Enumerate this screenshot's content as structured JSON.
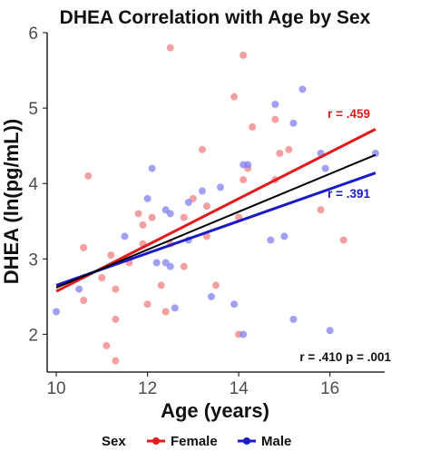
{
  "chart_data": {
    "type": "scatter",
    "title": "DHEA Correlation with Age by Sex",
    "xlabel": "Age (years)",
    "ylabel": "DHEA (ln(pg/mL))",
    "xlim": [
      9.8,
      17.2
    ],
    "ylim": [
      1.5,
      6.0
    ],
    "x_ticks": [
      10,
      12,
      14,
      16
    ],
    "y_ticks": [
      2,
      3,
      4,
      5,
      6
    ],
    "grid": false,
    "legend": {
      "title": "Sex",
      "placement": "bottom",
      "entries": [
        {
          "label": "Female",
          "color": "#e41a1c"
        },
        {
          "label": "Male",
          "color": "#1a1ac8"
        }
      ]
    },
    "series": [
      {
        "name": "Female",
        "color": "#f08080",
        "points": [
          [
            11.3,
            1.65
          ],
          [
            11.1,
            1.85
          ],
          [
            11.3,
            2.2
          ],
          [
            12.0,
            2.4
          ],
          [
            12.4,
            2.3
          ],
          [
            10.6,
            2.45
          ],
          [
            11.3,
            2.6
          ],
          [
            12.3,
            2.65
          ],
          [
            13.5,
            2.65
          ],
          [
            12.8,
            2.9
          ],
          [
            11.2,
            3.05
          ],
          [
            11.6,
            2.95
          ],
          [
            10.6,
            3.15
          ],
          [
            11.9,
            3.2
          ],
          [
            12.5,
            3.2
          ],
          [
            13.3,
            3.3
          ],
          [
            11.8,
            3.6
          ],
          [
            11.9,
            3.45
          ],
          [
            12.1,
            3.55
          ],
          [
            12.8,
            3.55
          ],
          [
            13.3,
            3.7
          ],
          [
            13.0,
            3.8
          ],
          [
            14.0,
            3.55
          ],
          [
            14.1,
            4.05
          ],
          [
            14.2,
            4.2
          ],
          [
            14.8,
            4.05
          ],
          [
            14.9,
            4.4
          ],
          [
            15.1,
            4.45
          ],
          [
            13.2,
            4.45
          ],
          [
            14.3,
            4.75
          ],
          [
            14.8,
            4.85
          ],
          [
            13.9,
            5.15
          ],
          [
            14.1,
            5.7
          ],
          [
            12.5,
            5.8
          ],
          [
            10.7,
            4.1
          ],
          [
            15.8,
            3.65
          ],
          [
            16.3,
            3.25
          ],
          [
            14.0,
            2.0
          ],
          [
            11.0,
            2.75
          ]
        ]
      },
      {
        "name": "Male",
        "color": "#8080f0",
        "points": [
          [
            10.0,
            2.3
          ],
          [
            10.5,
            2.6
          ],
          [
            11.5,
            3.3
          ],
          [
            12.2,
            2.95
          ],
          [
            12.4,
            2.95
          ],
          [
            12.5,
            2.9
          ],
          [
            12.6,
            2.35
          ],
          [
            12.1,
            4.2
          ],
          [
            12.0,
            3.8
          ],
          [
            12.4,
            3.65
          ],
          [
            12.5,
            3.6
          ],
          [
            12.9,
            3.75
          ],
          [
            13.4,
            2.5
          ],
          [
            13.9,
            2.4
          ],
          [
            13.6,
            3.95
          ],
          [
            14.1,
            2.0
          ],
          [
            14.2,
            4.25
          ],
          [
            14.7,
            3.25
          ],
          [
            15.0,
            3.3
          ],
          [
            15.2,
            2.2
          ],
          [
            14.8,
            5.05
          ],
          [
            15.2,
            4.8
          ],
          [
            15.4,
            5.25
          ],
          [
            15.8,
            4.4
          ],
          [
            15.9,
            4.2
          ],
          [
            16.0,
            2.05
          ],
          [
            17.0,
            4.4
          ],
          [
            13.2,
            3.9
          ],
          [
            12.9,
            3.25
          ],
          [
            14.1,
            4.25
          ]
        ]
      }
    ],
    "fit_lines": [
      {
        "name": "Female",
        "color": "#e41a1c",
        "x": [
          10.0,
          17.0
        ],
        "y": [
          2.57,
          4.72
        ],
        "label": "r = .459",
        "label_at": [
          15.95,
          4.87
        ]
      },
      {
        "name": "Male",
        "color": "#1a1ac8",
        "x": [
          10.0,
          17.0
        ],
        "y": [
          2.65,
          4.14
        ],
        "label": "r = .391",
        "label_at": [
          15.95,
          3.81
        ]
      },
      {
        "name": "All",
        "color": "#000000",
        "x": [
          10.0,
          17.0
        ],
        "y": [
          2.62,
          4.38
        ]
      }
    ],
    "annotation": "r = .410  p = .001"
  }
}
